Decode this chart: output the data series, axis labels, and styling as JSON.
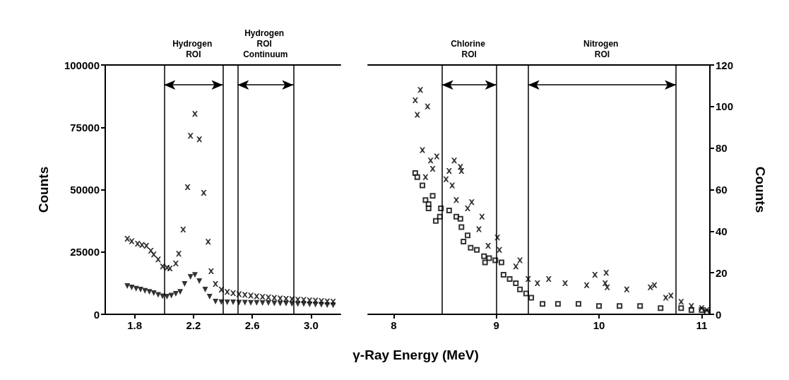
{
  "chart_data": [
    {
      "type": "scatter",
      "xlabel": "γ-Ray Energy (MeV)",
      "ylabel": "Counts",
      "xlim": [
        1.6,
        3.2
      ],
      "xticks": [
        1.8,
        2.2,
        2.6,
        {
          "value": 3,
          "label": "3.0"
        }
      ],
      "ylim": [
        0,
        100000
      ],
      "yticks": [
        0,
        25000,
        50000,
        75000,
        100000
      ],
      "grid": false,
      "ref_lines": [
        {
          "axis": "x",
          "value": 2.0
        },
        {
          "axis": "x",
          "value": 2.4
        },
        {
          "axis": "x",
          "value": 2.5
        },
        {
          "axis": "x",
          "value": 2.88
        }
      ],
      "annotations": [
        "Hydrogen ROI",
        "Hydrogen ROI Continuum"
      ],
      "series": [
        {
          "color": "#000000",
          "marker": "cross",
          "x": [
            1.75,
            1.78,
            1.82,
            1.85,
            1.88,
            1.91,
            1.93,
            1.96,
            1.99,
            2.02,
            2.04,
            2.08,
            2.1,
            2.13,
            2.16,
            2.18,
            2.21,
            2.24,
            2.27,
            2.3,
            2.32,
            2.35,
            2.39,
            2.43,
            2.47,
            2.51,
            2.55,
            2.59,
            2.63,
            2.67,
            2.71,
            2.75,
            2.79,
            2.83,
            2.87,
            2.91,
            2.95,
            2.99,
            3.03,
            3.07,
            3.11,
            3.15
          ],
          "values": [
            30300,
            29300,
            28300,
            27800,
            27500,
            25500,
            24000,
            22000,
            19200,
            18700,
            18400,
            20400,
            24300,
            34000,
            51000,
            71600,
            80400,
            70200,
            48700,
            29100,
            17300,
            12200,
            9900,
            9000,
            8500,
            8100,
            7800,
            7500,
            7200,
            7000,
            6800,
            6600,
            6400,
            6200,
            6100,
            5900,
            5800,
            5600,
            5500,
            5300,
            5200,
            5100
          ]
        },
        {
          "color": "#000000",
          "marker": "triangle",
          "x": [
            1.75,
            1.78,
            1.81,
            1.84,
            1.87,
            1.9,
            1.93,
            1.96,
            1.99,
            2.02,
            2.05,
            2.08,
            2.11,
            2.14,
            2.18,
            2.21,
            2.24,
            2.28,
            2.31,
            2.35,
            2.39,
            2.43,
            2.47,
            2.51,
            2.55,
            2.59,
            2.63,
            2.67,
            2.71,
            2.75,
            2.79,
            2.83,
            2.87,
            2.91,
            2.95,
            2.99,
            3.03,
            3.07,
            3.11,
            3.15
          ],
          "values": [
            11300,
            10800,
            10300,
            9900,
            9400,
            9000,
            8500,
            7800,
            7200,
            7100,
            7500,
            8200,
            9000,
            12200,
            15000,
            15800,
            13300,
            9900,
            7100,
            5100,
            4900,
            4800,
            4800,
            4700,
            4700,
            4600,
            4600,
            4500,
            4500,
            4400,
            4300,
            4300,
            4200,
            4100,
            4100,
            4000,
            3900,
            3800,
            3700,
            3600
          ]
        }
      ]
    },
    {
      "type": "scatter",
      "y2label": "Counts",
      "xlim": [
        7.75,
        11.08
      ],
      "xticks": [
        8,
        9,
        10,
        11
      ],
      "y2lim": [
        0,
        120
      ],
      "y2ticks": [
        0,
        20,
        40,
        60,
        80,
        100,
        120
      ],
      "grid": false,
      "ref_lines": [
        {
          "axis": "x",
          "value": 8.47
        },
        {
          "axis": "x",
          "value": 9.0
        },
        {
          "axis": "x",
          "value": 9.31
        },
        {
          "axis": "x",
          "value": 10.75
        }
      ],
      "annotations": [
        "Chlorine ROI",
        "Nitrogen ROI"
      ],
      "series": [
        {
          "color": "#000000",
          "marker": "cross",
          "axis": "y2",
          "x": [
            8.21,
            8.23,
            8.26,
            8.33,
            8.28,
            8.31,
            8.36,
            8.38,
            8.42,
            8.51,
            8.54,
            8.57,
            8.59,
            8.61,
            8.65,
            8.66,
            8.72,
            8.76,
            8.83,
            8.86,
            8.92,
            9.01,
            9.03,
            9.19,
            9.23,
            9.31,
            9.4,
            9.51,
            9.67,
            9.88,
            9.96,
            10.06,
            10.07,
            10.08,
            10.27,
            10.5,
            10.54,
            10.65,
            10.7,
            10.8,
            10.9,
            11.0,
            11.05
          ],
          "values": [
            103,
            96,
            108,
            100,
            79,
            66,
            74,
            70,
            76,
            65,
            69,
            62,
            74,
            55,
            71,
            69,
            51,
            54,
            41,
            47,
            33,
            37,
            31,
            23,
            26,
            17,
            15,
            17,
            15,
            14,
            19,
            15,
            20,
            13,
            12,
            13,
            14,
            8,
            9,
            6,
            4,
            3,
            2
          ]
        },
        {
          "color": "#000000",
          "marker": "square",
          "axis": "y2",
          "x": [
            8.21,
            8.23,
            8.28,
            8.31,
            8.34,
            8.34,
            8.38,
            8.41,
            8.45,
            8.46,
            8.54,
            8.61,
            8.65,
            8.66,
            8.68,
            8.72,
            8.75,
            8.81,
            8.88,
            8.89,
            8.93,
            8.99,
            9.05,
            9.07,
            9.13,
            9.19,
            9.23,
            9.29,
            9.34,
            9.45,
            9.6,
            9.8,
            10.0,
            10.2,
            10.4,
            10.6,
            10.8,
            10.9,
            11.0,
            11.05
          ],
          "values": [
            68,
            66,
            62,
            55,
            53,
            51,
            57,
            45,
            47,
            51,
            50,
            47,
            46,
            42,
            35,
            38,
            32,
            31,
            28,
            25,
            27,
            26,
            25,
            19,
            17,
            15,
            12,
            10,
            8,
            5,
            5,
            5,
            4,
            4,
            4,
            3,
            3,
            2,
            2,
            1
          ]
        }
      ]
    }
  ]
}
